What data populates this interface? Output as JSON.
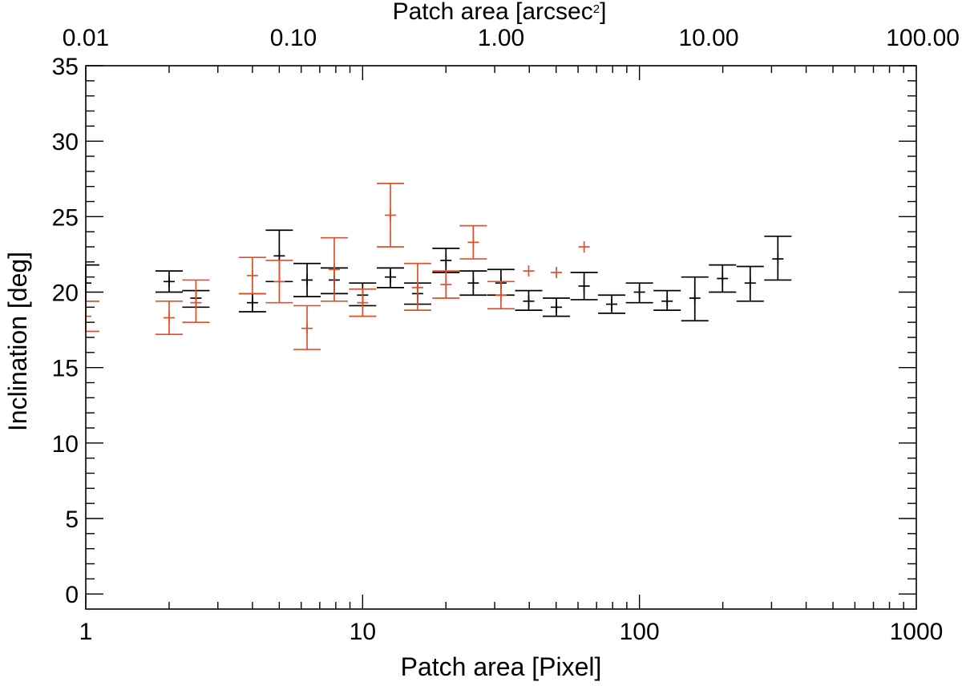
{
  "chart_data": {
    "type": "scatter",
    "title": "",
    "xlabel": "Patch area [Pixel]",
    "x2label": "Patch area [arcsec",
    "x2label_sup": "2",
    "x2label_end": "]",
    "ylabel": "Inclination [deg]",
    "xscale": "log",
    "xlim": [
      1,
      1000
    ],
    "x2lim": [
      0.01,
      100
    ],
    "ylim": [
      -1,
      35
    ],
    "xticks": [
      1,
      10,
      100,
      1000
    ],
    "xtick_labels": [
      "1",
      "10",
      "100",
      "1000"
    ],
    "x2ticks": [
      0.01,
      0.1,
      1,
      10,
      100
    ],
    "x2tick_labels": [
      "0.01",
      "0.10",
      "1.00",
      "10.00",
      "100.00"
    ],
    "yticks": [
      0,
      5,
      10,
      15,
      20,
      25,
      30,
      35
    ],
    "ytick_labels": [
      "0",
      "5",
      "10",
      "15",
      "20",
      "25",
      "30",
      "35"
    ],
    "grid": false,
    "series": [
      {
        "name": "black",
        "color": "#000000",
        "points": [
          {
            "x": 1.0,
            "y": 20.6,
            "lo": 19.4,
            "hi": 21.8
          },
          {
            "x": 2.0,
            "y": 20.7,
            "lo": 20.0,
            "hi": 21.4
          },
          {
            "x": 2.5,
            "y": 19.6,
            "lo": 19.0,
            "hi": 20.1
          },
          {
            "x": 4.0,
            "y": 19.3,
            "lo": 18.7,
            "hi": 19.9
          },
          {
            "x": 5.0,
            "y": 22.4,
            "lo": 20.7,
            "hi": 24.1
          },
          {
            "x": 6.3,
            "y": 20.8,
            "lo": 19.7,
            "hi": 21.9
          },
          {
            "x": 7.9,
            "y": 20.8,
            "lo": 19.9,
            "hi": 21.6
          },
          {
            "x": 10.0,
            "y": 19.8,
            "lo": 19.1,
            "hi": 20.6
          },
          {
            "x": 12.6,
            "y": 21.0,
            "lo": 20.3,
            "hi": 21.6
          },
          {
            "x": 15.8,
            "y": 19.9,
            "lo": 19.2,
            "hi": 20.6
          },
          {
            "x": 20.0,
            "y": 22.1,
            "lo": 21.3,
            "hi": 22.9
          },
          {
            "x": 25.1,
            "y": 20.6,
            "lo": 19.8,
            "hi": 21.4
          },
          {
            "x": 31.6,
            "y": 20.6,
            "lo": 19.8,
            "hi": 21.5
          },
          {
            "x": 39.8,
            "y": 19.4,
            "lo": 18.8,
            "hi": 20.1
          },
          {
            "x": 50.1,
            "y": 19.0,
            "lo": 18.4,
            "hi": 19.6
          },
          {
            "x": 63.1,
            "y": 20.4,
            "lo": 19.5,
            "hi": 21.3
          },
          {
            "x": 79.4,
            "y": 19.2,
            "lo": 18.6,
            "hi": 19.8
          },
          {
            "x": 100.0,
            "y": 20.0,
            "lo": 19.3,
            "hi": 20.6
          },
          {
            "x": 125.9,
            "y": 19.4,
            "lo": 18.8,
            "hi": 20.1
          },
          {
            "x": 158.5,
            "y": 19.6,
            "lo": 18.1,
            "hi": 21.0
          },
          {
            "x": 199.5,
            "y": 20.9,
            "lo": 20.0,
            "hi": 21.8
          },
          {
            "x": 251.2,
            "y": 20.6,
            "lo": 19.4,
            "hi": 21.7
          },
          {
            "x": 316.2,
            "y": 22.2,
            "lo": 20.8,
            "hi": 23.7
          }
        ]
      },
      {
        "name": "red",
        "color": "#e0502c",
        "points": [
          {
            "x": 1.0,
            "y": 18.4,
            "lo": 17.4,
            "hi": 19.4
          },
          {
            "x": 2.0,
            "y": 18.3,
            "lo": 17.2,
            "hi": 19.4
          },
          {
            "x": 2.5,
            "y": 19.3,
            "lo": 18.0,
            "hi": 20.8
          },
          {
            "x": 4.0,
            "y": 21.1,
            "lo": 19.9,
            "hi": 22.3
          },
          {
            "x": 5.0,
            "y": 20.7,
            "lo": 19.3,
            "hi": 22.1
          },
          {
            "x": 6.3,
            "y": 17.6,
            "lo": 16.2,
            "hi": 19.1
          },
          {
            "x": 7.9,
            "y": 21.5,
            "lo": 19.4,
            "hi": 23.6
          },
          {
            "x": 10.0,
            "y": 19.3,
            "lo": 18.4,
            "hi": 20.2
          },
          {
            "x": 12.6,
            "y": 25.1,
            "lo": 23.0,
            "hi": 27.2
          },
          {
            "x": 15.8,
            "y": 20.3,
            "lo": 18.8,
            "hi": 21.9
          },
          {
            "x": 20.0,
            "y": 20.5,
            "lo": 19.6,
            "hi": 21.4
          },
          {
            "x": 25.1,
            "y": 23.3,
            "lo": 22.2,
            "hi": 24.4
          },
          {
            "x": 31.6,
            "y": 19.8,
            "lo": 18.9,
            "hi": 20.7
          },
          {
            "x": 39.8,
            "y": 21.4,
            "lo": null,
            "hi": null
          },
          {
            "x": 50.1,
            "y": 21.3,
            "lo": null,
            "hi": null
          },
          {
            "x": 63.1,
            "y": 23.0,
            "lo": null,
            "hi": null
          }
        ]
      }
    ]
  }
}
